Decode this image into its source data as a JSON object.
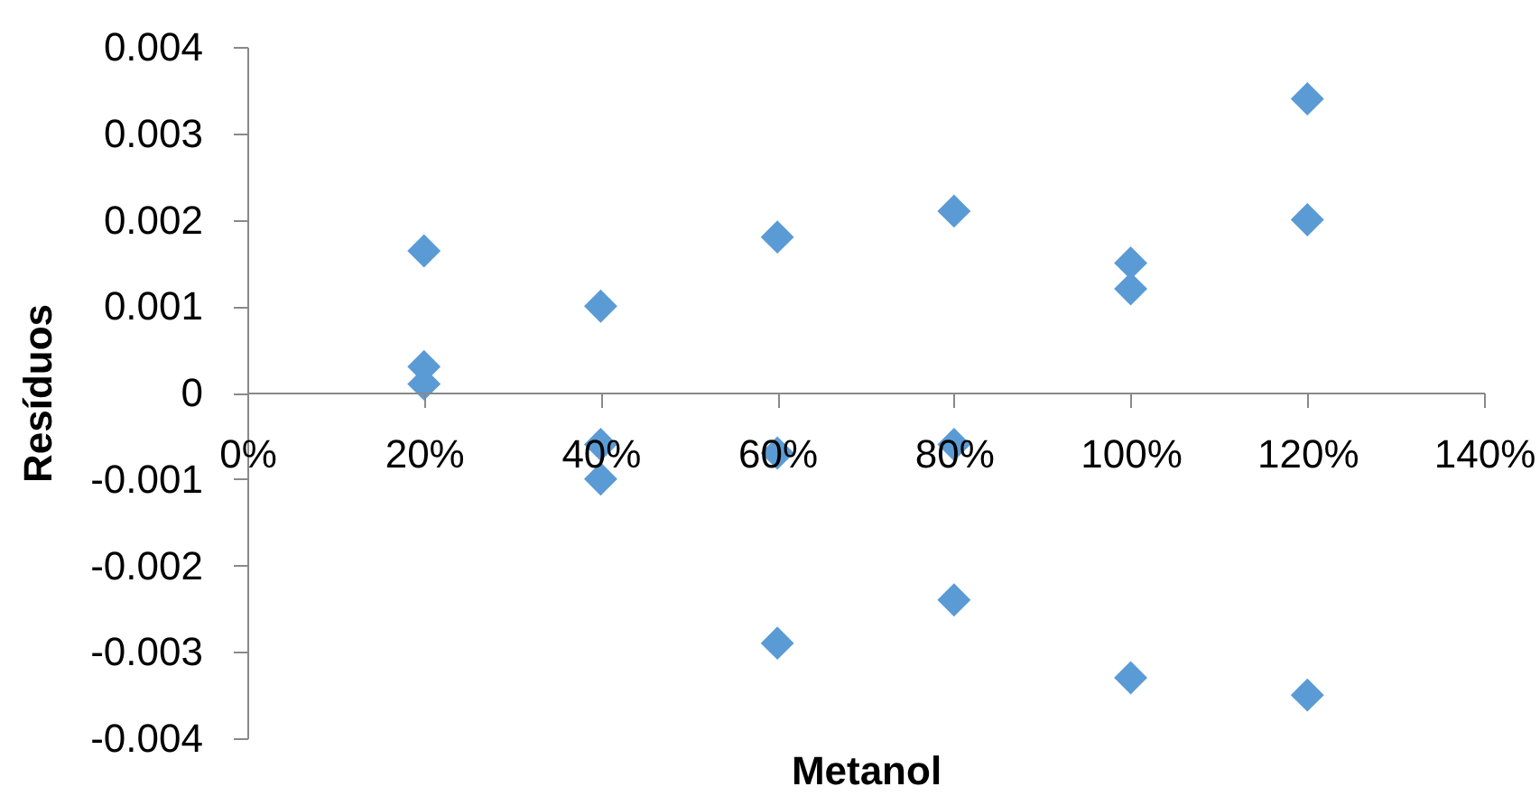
{
  "chart_data": {
    "type": "scatter",
    "xlabel": "Metanol",
    "ylabel": "Resíduos",
    "x": [
      20,
      20,
      20,
      40,
      40,
      40,
      60,
      60,
      60,
      80,
      80,
      80,
      100,
      100,
      100,
      120,
      120,
      120
    ],
    "values": [
      0.00164,
      0.0003,
      0.0001,
      0.001,
      -0.0006,
      -0.001,
      0.0018,
      -0.0007,
      -0.0029,
      0.0021,
      -0.0006,
      -0.0024,
      0.0015,
      0.0012,
      -0.0033,
      0.0034,
      0.002,
      -0.0035
    ],
    "color": "#5b9bd5",
    "marker": "diamond",
    "xlim": [
      0,
      140
    ],
    "xticks": [
      {
        "value": 0,
        "label": "0%"
      },
      {
        "value": 20,
        "label": "20%"
      },
      {
        "value": 40,
        "label": "40%"
      },
      {
        "value": 60,
        "label": "60%"
      },
      {
        "value": 80,
        "label": "80%"
      },
      {
        "value": 100,
        "label": "100%"
      },
      {
        "value": 120,
        "label": "120%"
      },
      {
        "value": 140,
        "label": "140%"
      }
    ],
    "ylim": [
      -0.004,
      0.004
    ],
    "yticks": [
      -0.004,
      -0.003,
      -0.002,
      -0.001,
      0,
      0.001,
      0.002,
      0.003,
      0.004
    ]
  }
}
